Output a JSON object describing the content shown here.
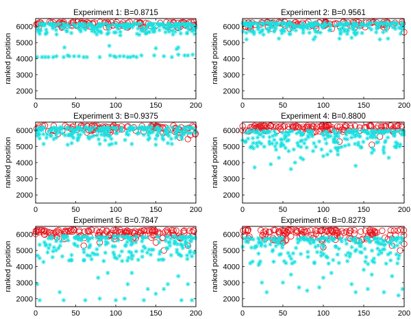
{
  "colors": {
    "circle": "#e8141c",
    "star": "#19e0e0",
    "axis": "#000000"
  },
  "chart_data": [
    {
      "type": "scatter",
      "title": "Experiment 1: B=0.8715",
      "ylabel": "ranked position",
      "xlabel": "",
      "xlim": [
        0,
        200
      ],
      "ylim": [
        1500,
        6500
      ],
      "xticks": [
        0,
        50,
        100,
        150,
        200
      ],
      "yticks": [
        2000,
        3000,
        4000,
        5000,
        6000
      ],
      "legend": "none",
      "series": [
        {
          "name": "circles",
          "marker": "o",
          "top": 6300,
          "spread": 350,
          "count": 110,
          "outliers": []
        },
        {
          "name": "stars",
          "marker": "*",
          "top": 6200,
          "spread": 700,
          "count": 220,
          "outliers": [
            [
              2,
              4100
            ],
            [
              8,
              4100
            ],
            [
              12,
              4100
            ],
            [
              16,
              4100
            ],
            [
              22,
              4100
            ],
            [
              26,
              4150
            ],
            [
              35,
              4100
            ],
            [
              40,
              4200
            ],
            [
              42,
              4150
            ],
            [
              48,
              4150
            ],
            [
              54,
              4150
            ],
            [
              60,
              4100
            ],
            [
              64,
              4100
            ],
            [
              80,
              4100
            ],
            [
              93,
              4200
            ],
            [
              98,
              4150
            ],
            [
              100,
              4100
            ],
            [
              105,
              4150
            ],
            [
              110,
              4150
            ],
            [
              115,
              4100
            ],
            [
              118,
              4100
            ],
            [
              122,
              4150
            ],
            [
              126,
              4100
            ],
            [
              132,
              4200
            ],
            [
              148,
              4200
            ],
            [
              160,
              4150
            ],
            [
              170,
              4100
            ],
            [
              178,
              4250
            ],
            [
              186,
              4200
            ],
            [
              190,
              4200
            ],
            [
              196,
              4250
            ],
            [
              36,
              4700
            ],
            [
              92,
              4800
            ],
            [
              150,
              4650
            ],
            [
              178,
              4700
            ],
            [
              176,
              4600
            ]
          ]
        }
      ]
    },
    {
      "type": "scatter",
      "title": "Experiment 2: B=0.9561",
      "ylabel": "ranked position",
      "xlabel": "",
      "xlim": [
        0,
        200
      ],
      "ylim": [
        1500,
        6500
      ],
      "xticks": [
        0,
        50,
        100,
        150,
        200
      ],
      "yticks": [
        2000,
        3000,
        4000,
        5000,
        6000
      ],
      "legend": "none",
      "series": [
        {
          "name": "circles",
          "marker": "o",
          "top": 6300,
          "spread": 400,
          "count": 100,
          "outliers": [
            [
              200,
              5650
            ]
          ]
        },
        {
          "name": "stars",
          "marker": "*",
          "top": 6250,
          "spread": 700,
          "count": 220,
          "outliers": [
            [
              5,
              5200
            ],
            [
              26,
              5500
            ],
            [
              45,
              5250
            ],
            [
              88,
              5200
            ],
            [
              90,
              5350
            ],
            [
              120,
              5250
            ],
            [
              135,
              5300
            ],
            [
              140,
              5500
            ],
            [
              170,
              5200
            ],
            [
              180,
              5250
            ]
          ]
        }
      ]
    },
    {
      "type": "scatter",
      "title": "Experiment 3: B=0.9375",
      "ylabel": "ranked position",
      "xlabel": "",
      "xlim": [
        0,
        200
      ],
      "ylim": [
        1500,
        6500
      ],
      "xticks": [
        0,
        50,
        100,
        150,
        200
      ],
      "yticks": [
        2000,
        3000,
        4000,
        5000,
        6000
      ],
      "legend": "none",
      "series": [
        {
          "name": "circles",
          "marker": "o",
          "top": 6300,
          "spread": 500,
          "count": 100,
          "outliers": [
            [
              180,
              5550
            ],
            [
              190,
              5450
            ],
            [
              193,
              5700
            ]
          ]
        },
        {
          "name": "stars",
          "marker": "*",
          "top": 6200,
          "spread": 800,
          "count": 220,
          "outliers": [
            [
              10,
              5150
            ],
            [
              40,
              5100
            ],
            [
              45,
              5200
            ],
            [
              80,
              5150
            ],
            [
              92,
              5100
            ],
            [
              95,
              5150
            ],
            [
              100,
              5200
            ],
            [
              120,
              5150
            ],
            [
              150,
              5100
            ],
            [
              165,
              5200
            ],
            [
              170,
              5150
            ]
          ]
        }
      ]
    },
    {
      "type": "scatter",
      "title": "Experiment 4: B=0.8800",
      "ylabel": "ranked position",
      "xlabel": "",
      "xlim": [
        0,
        200
      ],
      "ylim": [
        1500,
        6500
      ],
      "xticks": [
        0,
        50,
        100,
        150,
        200
      ],
      "yticks": [
        2000,
        3000,
        4000,
        5000,
        6000
      ],
      "legend": "none",
      "series": [
        {
          "name": "circles",
          "marker": "o",
          "top": 6300,
          "spread": 400,
          "count": 140,
          "outliers": [
            [
              120,
              5300
            ],
            [
              160,
              5100
            ],
            [
              170,
              5600
            ]
          ]
        },
        {
          "name": "stars",
          "marker": "*",
          "top": 6000,
          "spread": 1300,
          "count": 220,
          "outliers": [
            [
              15,
              3700
            ],
            [
              35,
              3900
            ],
            [
              45,
              4300
            ],
            [
              60,
              3600
            ],
            [
              65,
              4000
            ],
            [
              72,
              4300
            ],
            [
              75,
              4200
            ],
            [
              100,
              4400
            ],
            [
              105,
              4500
            ],
            [
              118,
              4500
            ],
            [
              140,
              3800
            ],
            [
              160,
              4600
            ],
            [
              175,
              4600
            ],
            [
              181,
              4300
            ]
          ]
        }
      ]
    },
    {
      "type": "scatter",
      "title": "Experiment 5: B=0.7847",
      "ylabel": "ranked position",
      "xlabel": "",
      "xlim": [
        0,
        200
      ],
      "ylim": [
        1500,
        6500
      ],
      "xticks": [
        0,
        50,
        100,
        150,
        200
      ],
      "yticks": [
        2000,
        3000,
        4000,
        5000,
        6000
      ],
      "legend": "none",
      "series": [
        {
          "name": "circles",
          "marker": "o",
          "top": 6300,
          "spread": 600,
          "count": 140,
          "outliers": [
            [
              60,
              5300
            ],
            [
              80,
              5500
            ],
            [
              160,
              5000
            ],
            [
              190,
              5300
            ],
            [
              150,
              5500
            ]
          ]
        },
        {
          "name": "stars",
          "marker": "*",
          "top": 5900,
          "spread": 1600,
          "count": 200,
          "outliers": [
            [
              2,
              2900
            ],
            [
              5,
              1900
            ],
            [
              30,
              2400
            ],
            [
              35,
              1900
            ],
            [
              44,
              4400
            ],
            [
              60,
              4400
            ],
            [
              62,
              1900
            ],
            [
              78,
              3300
            ],
            [
              80,
              2000
            ],
            [
              90,
              3600
            ],
            [
              100,
              1900
            ],
            [
              111,
              2000
            ],
            [
              115,
              2900
            ],
            [
              120,
              3600
            ],
            [
              135,
              1900
            ],
            [
              140,
              2600
            ],
            [
              150,
              2300
            ],
            [
              160,
              2600
            ],
            [
              165,
              2900
            ],
            [
              182,
              1900
            ],
            [
              190,
              2900
            ],
            [
              195,
              1900
            ],
            [
              178,
              3400
            ]
          ]
        }
      ]
    },
    {
      "type": "scatter",
      "title": "Experiment 6: B=0.8273",
      "ylabel": "ranked position",
      "xlabel": "",
      "xlim": [
        0,
        200
      ],
      "ylim": [
        1500,
        6500
      ],
      "xticks": [
        0,
        50,
        100,
        150,
        200
      ],
      "yticks": [
        2000,
        3000,
        4000,
        5000,
        6000
      ],
      "legend": "none",
      "series": [
        {
          "name": "circles",
          "marker": "o",
          "top": 6300,
          "spread": 700,
          "count": 140,
          "outliers": [
            [
              50,
              5500
            ],
            [
              100,
              5200
            ],
            [
              195,
              5000
            ],
            [
              200,
              5400
            ],
            [
              185,
              5300
            ]
          ]
        },
        {
          "name": "stars",
          "marker": "*",
          "top": 5800,
          "spread": 1600,
          "count": 200,
          "outliers": [
            [
              20,
              4100
            ],
            [
              24,
              3000
            ],
            [
              30,
              2400
            ],
            [
              50,
              3000
            ],
            [
              60,
              3500
            ],
            [
              70,
              2700
            ],
            [
              80,
              2500
            ],
            [
              95,
              2700
            ],
            [
              100,
              3300
            ],
            [
              110,
              3600
            ],
            [
              135,
              2900
            ],
            [
              140,
              2400
            ],
            [
              150,
              3800
            ],
            [
              155,
              2600
            ],
            [
              160,
              3500
            ],
            [
              175,
              2400
            ],
            [
              185,
              3400
            ],
            [
              193,
              2200
            ],
            [
              198,
              2600
            ]
          ]
        }
      ]
    }
  ]
}
